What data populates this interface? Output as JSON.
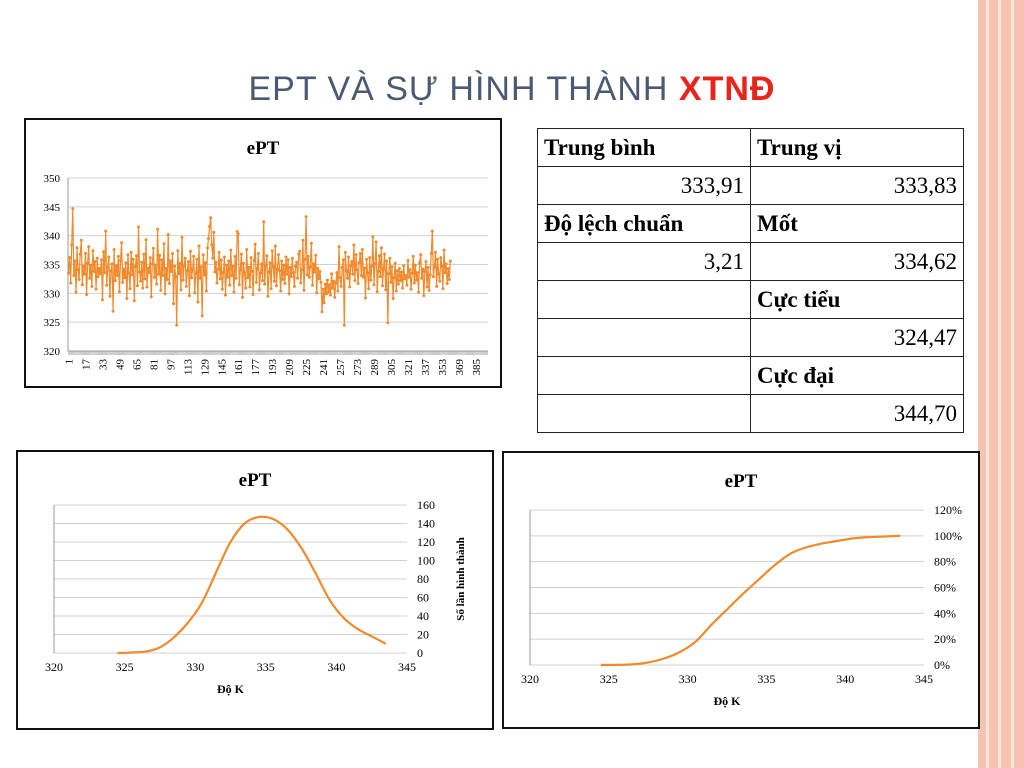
{
  "slide": {
    "title_main": "EPT VÀ SỰ HÌNH THÀNH",
    "title_accent": "XTNĐ",
    "colors": {
      "title": "#4a5a72",
      "accent": "#e8241b",
      "series": "#f08a2c"
    }
  },
  "table": {
    "rows": [
      [
        "Trung bình",
        "Trung vị"
      ],
      [
        "333,91",
        "333,83"
      ],
      [
        "Độ lệch chuẩn",
        "Mốt"
      ],
      [
        "3,21",
        "334,62"
      ],
      [
        "",
        "Cực tiểu"
      ],
      [
        "",
        "324,47"
      ],
      [
        "",
        "Cực đại"
      ],
      [
        "",
        "344,70"
      ]
    ]
  },
  "chart_data": [
    {
      "type": "line",
      "title": "ePT",
      "xlabel": "",
      "ylabel": "",
      "ylim": [
        320,
        350
      ],
      "yticks": [
        "320",
        "325",
        "330",
        "335",
        "340",
        "345",
        "350"
      ],
      "xticks": [
        "1",
        "17",
        "33",
        "49",
        "65",
        "81",
        "97",
        "113",
        "129",
        "145",
        "161",
        "177",
        "193",
        "209",
        "225",
        "241",
        "257",
        "273",
        "289",
        "305",
        "321",
        "337",
        "353",
        "369",
        "385"
      ],
      "n_points": 396,
      "grid": true,
      "legend": "none",
      "markers": true,
      "series": [
        {
          "values": [
            333.5,
            336.2,
            331.8,
            338.4,
            344.7,
            333.1,
            335.6,
            330.2,
            337.9,
            334.1,
            332.4,
            336.8,
            339.2,
            331.5,
            334.7,
            333.3,
            336.9,
            329.8,
            335.2,
            338.1,
            332.6,
            334.9,
            331.2,
            337.4,
            333.8,
            335.5,
            330.7,
            336.1,
            332.9,
            334.3,
            333.4,
            335.8,
            328.9,
            337.2,
            333.6,
            340.8,
            331.4,
            334.5,
            336.3,
            329.5,
            333.9,
            335.1,
            326.9,
            337.6,
            332.2,
            334.8,
            333.1,
            336.4,
            330.3,
            335.7,
            338.8,
            331.9,
            334.2,
            332.7,
            335.3,
            329.1,
            336.7,
            333.5,
            330.8,
            337.1,
            333.2,
            335.9,
            328.7,
            334.6,
            336.5,
            331.3,
            341.5,
            333.7,
            332.1,
            335.4,
            330.9,
            336.8,
            332.5,
            339.3,
            331.1,
            334.4,
            333.6,
            336.2,
            329.4,
            335.1,
            337.8,
            332.8,
            334.9,
            331.6,
            341.1,
            333.3,
            336.6,
            330.5,
            335.8,
            333.1,
            338.6,
            329.9,
            334.3,
            332.4,
            340.2,
            331.7,
            335.6,
            333.8,
            336.9,
            328.2,
            334.7,
            332.9,
            324.5,
            337.4,
            333.4,
            335.2,
            330.6,
            339.7,
            332.3,
            334.8,
            336.1,
            331.2,
            333.9,
            335.5,
            329.6,
            337.3,
            332.7,
            334.1,
            336.4,
            330.1,
            333.5,
            335.9,
            328.5,
            338.2,
            332.6,
            334.6,
            326.1,
            336.7,
            333.2,
            335.3,
            330.4,
            337.9,
            339.5,
            341.6,
            343.1,
            338.4,
            336.1,
            340.6,
            333.7,
            335.4,
            331.8,
            334.2,
            337.1,
            332.5,
            335.8,
            330.7,
            333.6,
            336.3,
            329.7,
            334.9,
            332.8,
            335.6,
            331.4,
            337.5,
            333.1,
            334.7,
            330.2,
            336.4,
            332.6,
            340.7,
            340.3,
            331.5,
            334.1,
            336.8,
            329.3,
            335.2,
            333.4,
            330.9,
            337.6,
            332.7,
            334.5,
            331.1,
            336.2,
            333.8,
            329.8,
            335.7,
            338.5,
            331.9,
            334.3,
            336.9,
            330.6,
            333.5,
            335.1,
            332.2,
            342.4,
            331.6,
            334.8,
            336.5,
            329.5,
            333.7,
            335.3,
            330.8,
            337.4,
            334.6,
            332.1,
            338.2,
            331.3,
            334.2,
            336.7,
            333.9,
            330.4,
            335.6,
            332.4,
            334.9,
            331.7,
            336.3,
            333.3,
            335.8,
            329.9,
            334.5,
            332.9,
            336.1,
            333.6,
            331.2,
            334.7,
            335.4,
            332.6,
            336.8,
            337.3,
            331.8,
            334.1,
            339.2,
            330.5,
            335.9,
            343.3,
            333.2,
            336.4,
            332.8,
            334.6,
            338.7,
            331.4,
            335.1,
            333.7,
            336.6,
            330.1,
            334.3,
            332.5,
            333.8,
            331.9,
            326.8,
            330.7,
            328.4,
            331.6,
            329.9,
            332.3,
            330.2,
            331.5,
            329.7,
            333.4,
            330.9,
            332.1,
            329.3,
            331.8,
            333.6,
            330.4,
            338.1,
            332.7,
            331.2,
            334.5,
            335.8,
            324.5,
            337.1,
            333.9,
            332.6,
            336.3,
            331.1,
            334.8,
            335.5,
            333.3,
            338.4,
            332.2,
            336.7,
            334.1,
            331.7,
            335.3,
            336.9,
            333.1,
            337.6,
            332.8,
            334.4,
            329.2,
            335.9,
            333.5,
            330.8,
            336.2,
            332.3,
            334.7,
            339.8,
            331.5,
            335.1,
            338.9,
            330.3,
            333.8,
            336.5,
            332.9,
            337.9,
            331.3,
            334.2,
            336.8,
            330.6,
            335.6,
            324.9,
            333.4,
            336.1,
            331.9,
            334.6,
            329.1,
            332.7,
            335.2,
            330.4,
            333.9,
            331.6,
            334.3,
            332.2,
            333.7,
            330.9,
            334.8,
            332.5,
            333.1,
            331.4,
            335.7,
            332.8,
            334.1,
            330.7,
            333.5,
            336.4,
            331.8,
            334.9,
            332.3,
            333.6,
            330.2,
            335.3,
            336.7,
            332.6,
            334.2,
            329.6,
            333.8,
            335.5,
            331.1,
            334.5,
            330.5,
            333.2,
            336.9,
            340.8,
            332.9,
            334.6,
            337.1,
            331.2,
            335.9,
            333.4,
            332.1,
            336.2,
            334.7,
            330.8,
            337.5,
            333.6,
            335.1,
            331.7,
            334.3,
            332.4,
            335.6
          ]
        }
      ]
    },
    {
      "type": "line",
      "title": "ePT",
      "xlabel": "Độ K",
      "ylabel": "Số lần hình thành",
      "xlim": [
        320,
        345
      ],
      "ylim": [
        0,
        160
      ],
      "xticks": [
        "320",
        "325",
        "330",
        "335",
        "340",
        "345"
      ],
      "yticks": [
        "0",
        "20",
        "40",
        "60",
        "80",
        "100",
        "120",
        "140",
        "160"
      ],
      "y_axis_side": "right",
      "grid": true,
      "legend": "none",
      "series": [
        {
          "x": [
            324.5,
            325.5,
            326.5,
            327.5,
            328.5,
            329.5,
            330.5,
            331.5,
            332.5,
            333.5,
            334.5,
            335.5,
            336.5,
            337.5,
            338.5,
            339.5,
            340.5,
            341.5,
            342.5,
            343.5
          ],
          "values": [
            0,
            0.5,
            1.5,
            6,
            17,
            33,
            55,
            88,
            120,
            140,
            147,
            145,
            134,
            114,
            87,
            58,
            38,
            26,
            18,
            10
          ]
        }
      ]
    },
    {
      "type": "line",
      "title": "ePT",
      "xlabel": "Độ K",
      "ylabel": "",
      "xlim": [
        320,
        345
      ],
      "ylim": [
        0,
        120
      ],
      "xticks": [
        "320",
        "325",
        "330",
        "335",
        "340",
        "345"
      ],
      "yticks": [
        "0%",
        "20%",
        "40%",
        "60%",
        "80%",
        "100%",
        "120%"
      ],
      "y_axis_side": "right",
      "grid": true,
      "legend": "none",
      "series": [
        {
          "x": [
            324.5,
            325.5,
            326.5,
            327.5,
            328.5,
            329.5,
            330.5,
            331.5,
            332.5,
            333.5,
            334.5,
            335.5,
            336.5,
            337.5,
            338.5,
            339.5,
            340.5,
            341.5,
            342.5,
            343.5
          ],
          "values": [
            0,
            0.1,
            0.5,
            2,
            5,
            10,
            18,
            31,
            43,
            55,
            66,
            77,
            86,
            91,
            94,
            96,
            98,
            99,
            99.5,
            100
          ]
        }
      ]
    }
  ]
}
